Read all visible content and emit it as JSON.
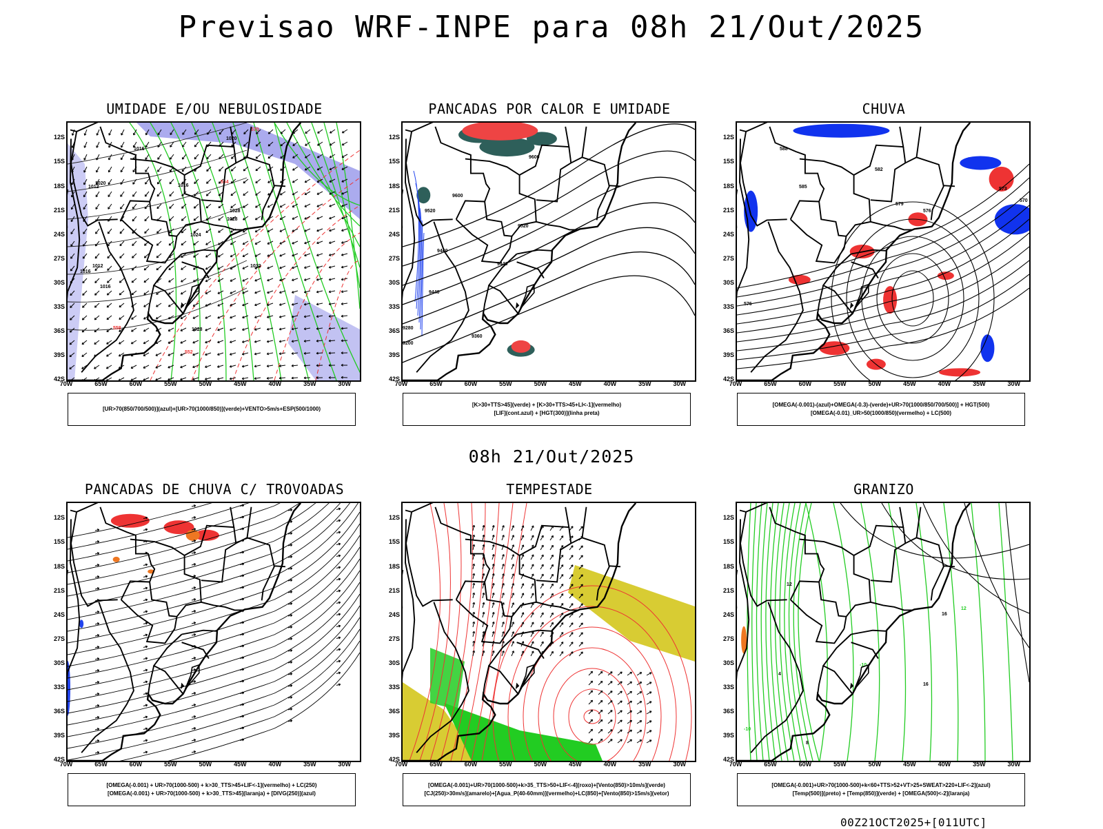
{
  "title": "Previsao WRF-INPE  para 08h 21/Out/2025",
  "mid_title": "08h 21/Out/2025",
  "footer": "00Z21OCT2025+[011UTC]",
  "axes": {
    "lat_labels": [
      "12S",
      "15S",
      "18S",
      "21S",
      "24S",
      "27S",
      "30S",
      "33S",
      "36S",
      "39S",
      "42S"
    ],
    "lon_labels": [
      "70W",
      "65W",
      "60W",
      "55W",
      "50W",
      "45W",
      "40W",
      "35W",
      "30W"
    ]
  },
  "colors": {
    "humidity_high": "#8f8fe8",
    "humidity_low": "#22cc22",
    "wind_vector": "#000000",
    "pressure_red": "#ee3333",
    "convection_green": "#2e5f5a",
    "convection_red": "#ee4444",
    "lif_blue": "#2244ee",
    "rain_red": "#ee3333",
    "rain_blue": "#1133ee",
    "orange": "#ee7722",
    "jet_yellow": "#d8cc33",
    "wind_green": "#22cc22",
    "hail_green": "#22cc22"
  },
  "panels": [
    {
      "id": "umidade",
      "title": "UMIDADE E/OU NEBULOSIDADE",
      "legend": [
        "[UR>70(850/700/500)](azul)+[UR>70(1000/850)](verde)+VENTO>5m/s+ESP(500/1000)"
      ],
      "labels": [
        "1020",
        "1016",
        "1016",
        "1012",
        "1028",
        "1024",
        "1028",
        "1032",
        "1028",
        "1016",
        "1016",
        "1012",
        "1020",
        "570",
        "564",
        "558",
        "552"
      ]
    },
    {
      "id": "pancadas",
      "title": "PANCADAS POR CALOR E UMIDADE",
      "legend": [
        "[K>30+TTS>45](verde) + [K>30+TTS>45+LI<-1](vermelho)",
        "[LIF](cont.azul) + [HGT(300)](linha preta)"
      ],
      "labels": [
        "9600",
        "9600",
        "9520",
        "9520",
        "9440",
        "9440",
        "9360",
        "9280",
        "9440",
        "9200"
      ]
    },
    {
      "id": "chuva",
      "title": "CHUVA",
      "legend": [
        "[OMEGA(-0.001)-(azul)+OMEGA(-0.3)-(verde)+UR>70(1000/850/700/500)] + HGT(500)",
        "[OMEGA(-0.01)_UR>50(1000/850)(vermelho) + LC(500)"
      ],
      "labels": [
        "588",
        "585",
        "582",
        "579",
        "576",
        "573",
        "570",
        "576"
      ]
    },
    {
      "id": "trovoadas",
      "title": "PANCADAS DE CHUVA C/ TROVOADAS",
      "legend": [
        "[OMEGA(-0.001) + UR>70(1000-500) + k>30_TTS>45+LIF<-1](vermelho) + LC(250)",
        "[OMEGA(-0.001) + UR>70(1000-500) + k>30_TTS>45](laranja) + [DIVG(250)](azul)"
      ],
      "labels": []
    },
    {
      "id": "tempestade",
      "title": "TEMPESTADE",
      "legend": [
        "[OMEGA(-0.001)+UR>70(1000-500)+k>35_TTS>50+LIF<-4](roxo)+[Vento(850)>10m/s](verde)",
        "[CJ(250)>30m/s](amarelo)+[Agua_P(40-60mm)](vermelho)+LC(850)+[Vento(850)>15m/s](vetor)"
      ],
      "labels": []
    },
    {
      "id": "granizo",
      "title": "GRANIZO",
      "legend": [
        "[OMEGA(-0.001)+UR>70(1000-500)+k<60+TTS>52+VT>25+SWEAT>220+LIF<-2](azul)",
        "[Temp(500)](preto) + [Temp(850)](verde) + [OMEGA(500)<-2](laranja)"
      ],
      "labels": [
        "12",
        "16",
        "-10",
        "-10",
        "12",
        "8",
        "16",
        "4"
      ]
    }
  ]
}
